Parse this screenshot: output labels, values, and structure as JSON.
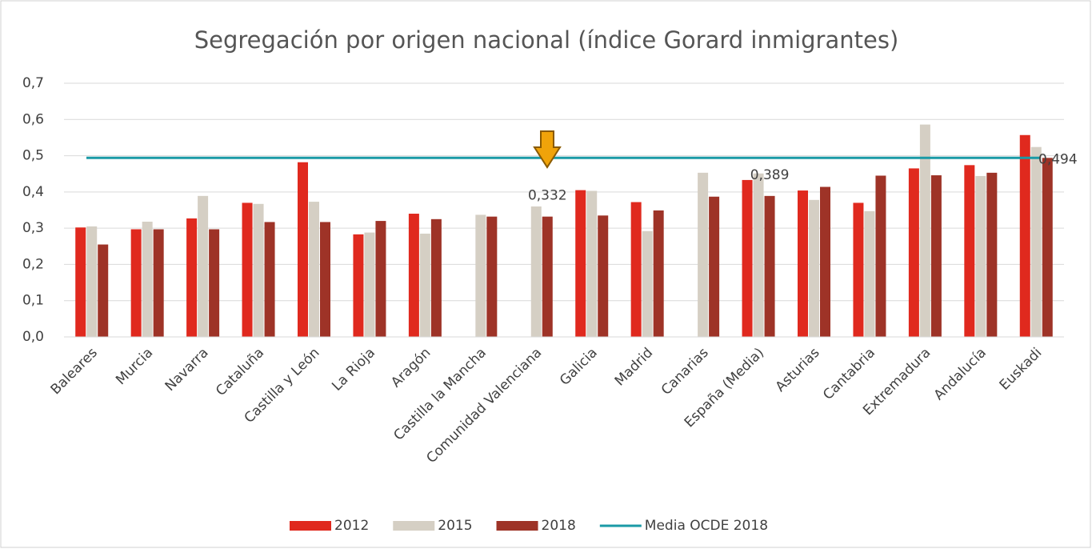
{
  "chart_data": {
    "type": "bar",
    "title": "Segregación por origen nacional (índice Gorard inmigrantes)",
    "categories": [
      "Baleares",
      "Murcia",
      "Navarra",
      "Cataluña",
      "Castilla y León",
      "La Rioja",
      "Aragón",
      "Castilla la Mancha",
      "Comunidad Valenciana",
      "Galicia",
      "Madrid",
      "Canarias",
      "España (Media)",
      "Asturias",
      "Cantabria",
      "Extremadura",
      "Andalucía",
      "Euskadi"
    ],
    "series": [
      {
        "name": "2012",
        "color": "#e0291e",
        "values": [
          0.302,
          0.297,
          0.327,
          0.37,
          0.482,
          0.283,
          0.34,
          null,
          null,
          0.405,
          0.372,
          null,
          0.433,
          0.404,
          0.37,
          0.465,
          0.474,
          0.557
        ]
      },
      {
        "name": "2015",
        "color": "#d5cfc4",
        "values": [
          0.305,
          0.318,
          0.389,
          0.367,
          0.373,
          0.288,
          0.285,
          0.337,
          0.36,
          0.403,
          0.292,
          0.453,
          0.451,
          0.378,
          0.347,
          0.586,
          0.444,
          0.524
        ]
      },
      {
        "name": "2018",
        "color": "#9e3327",
        "values": [
          0.255,
          0.297,
          0.297,
          0.317,
          0.317,
          0.32,
          0.325,
          0.332,
          0.332,
          0.335,
          0.349,
          0.387,
          0.389,
          0.414,
          0.445,
          0.446,
          0.453,
          0.494
        ],
        "value_labels": [
          null,
          null,
          null,
          null,
          null,
          null,
          null,
          null,
          "0,332",
          null,
          null,
          null,
          "0,389",
          null,
          null,
          null,
          null,
          null
        ]
      }
    ],
    "reference_line": {
      "name": "Media OCDE 2018",
      "color": "#1a9aa6",
      "value": 0.494,
      "label": "0,494"
    },
    "ylim": [
      0,
      0.7
    ],
    "yticks": [
      {
        "value": 0,
        "label": "0,0"
      },
      {
        "value": 0.1,
        "label": "0,1"
      },
      {
        "value": 0.2,
        "label": "0,2"
      },
      {
        "value": 0.3,
        "label": "0,3"
      },
      {
        "value": 0.4,
        "label": "0,4"
      },
      {
        "value": 0.5,
        "label": "0,5"
      },
      {
        "value": 0.6,
        "label": "0,6"
      },
      {
        "value": 0.7,
        "label": "0,7"
      }
    ],
    "grid": true,
    "legend": "bottom"
  }
}
